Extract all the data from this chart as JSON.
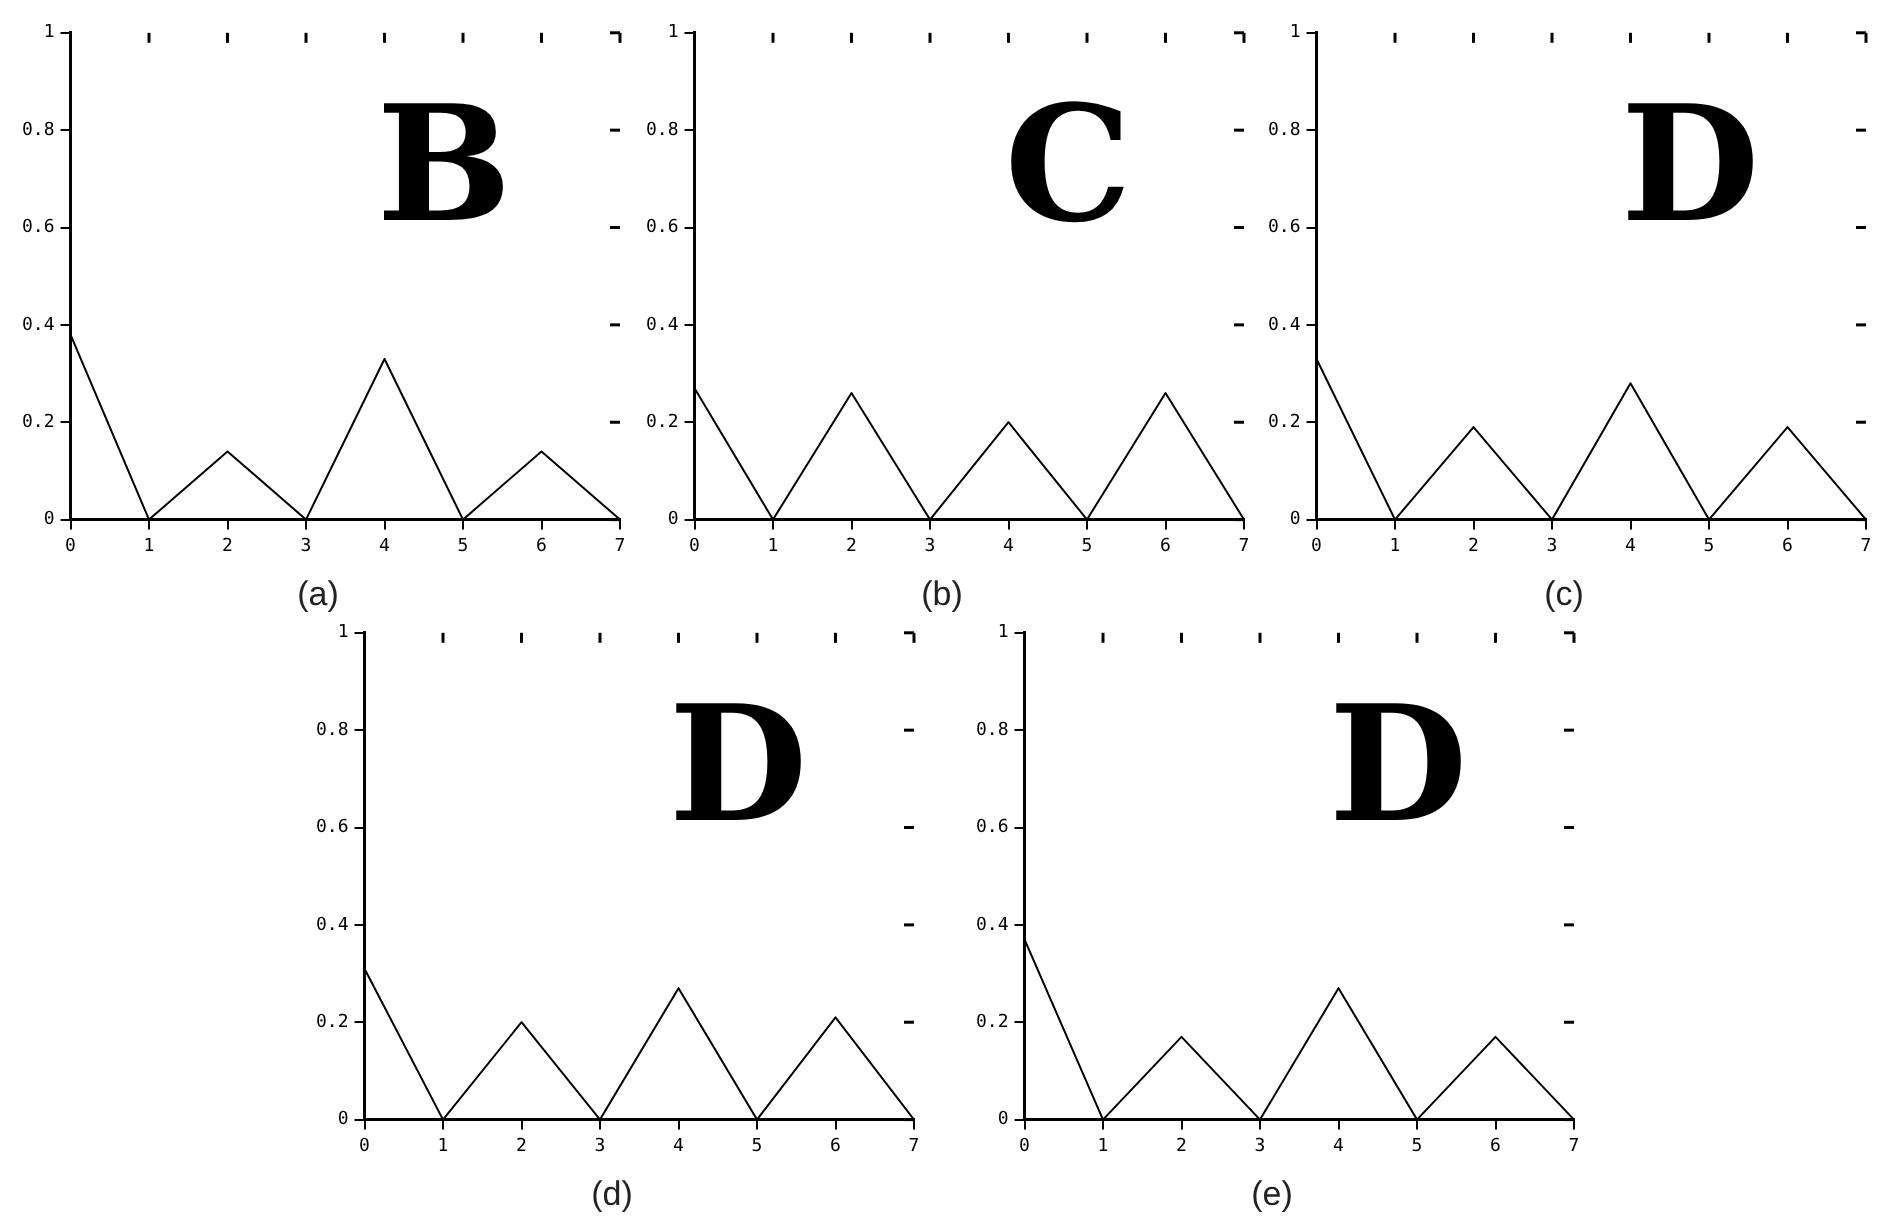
{
  "chart_data": [
    {
      "type": "line",
      "title": "(a)",
      "annotations": [
        "B"
      ],
      "x": [
        0,
        1,
        2,
        3,
        4,
        5,
        6,
        7
      ],
      "values": [
        0.38,
        0,
        0.14,
        0,
        0.33,
        0,
        0.14,
        0
      ],
      "color": "#000000",
      "xlim": [
        0,
        7
      ],
      "xticks": [
        0,
        1,
        2,
        3,
        4,
        5,
        6,
        7
      ],
      "ylim": [
        0,
        1
      ],
      "yticks": [
        0,
        0.2,
        0.4,
        0.6,
        0.8,
        1
      ],
      "grid": false,
      "legend": false,
      "marker": "none",
      "line_style": "solid"
    },
    {
      "type": "line",
      "title": "(b)",
      "annotations": [
        "C"
      ],
      "x": [
        0,
        1,
        2,
        3,
        4,
        5,
        6,
        7
      ],
      "values": [
        0.27,
        0,
        0.26,
        0,
        0.2,
        0,
        0.26,
        0
      ],
      "color": "#000000",
      "xlim": [
        0,
        7
      ],
      "xticks": [
        0,
        1,
        2,
        3,
        4,
        5,
        6,
        7
      ],
      "ylim": [
        0,
        1
      ],
      "yticks": [
        0,
        0.2,
        0.4,
        0.6,
        0.8,
        1
      ],
      "grid": false,
      "legend": false,
      "marker": "none",
      "line_style": "solid"
    },
    {
      "type": "line",
      "title": "(c)",
      "annotations": [
        "D"
      ],
      "x": [
        0,
        1,
        2,
        3,
        4,
        5,
        6,
        7
      ],
      "values": [
        0.33,
        0,
        0.19,
        0,
        0.28,
        0,
        0.19,
        0
      ],
      "color": "#000000",
      "xlim": [
        0,
        7
      ],
      "xticks": [
        0,
        1,
        2,
        3,
        4,
        5,
        6,
        7
      ],
      "ylim": [
        0,
        1
      ],
      "yticks": [
        0,
        0.2,
        0.4,
        0.6,
        0.8,
        1
      ],
      "grid": false,
      "legend": false,
      "marker": "none",
      "line_style": "solid"
    },
    {
      "type": "line",
      "title": "(d)",
      "annotations": [
        "D"
      ],
      "x": [
        0,
        1,
        2,
        3,
        4,
        5,
        6,
        7
      ],
      "values": [
        0.31,
        0,
        0.2,
        0,
        0.27,
        0,
        0.21,
        0
      ],
      "color": "#000000",
      "xlim": [
        0,
        7
      ],
      "xticks": [
        0,
        1,
        2,
        3,
        4,
        5,
        6,
        7
      ],
      "ylim": [
        0,
        1
      ],
      "yticks": [
        0,
        0.2,
        0.4,
        0.6,
        0.8,
        1
      ],
      "grid": false,
      "legend": false,
      "marker": "none",
      "line_style": "solid"
    },
    {
      "type": "line",
      "title": "(e)",
      "annotations": [
        "D"
      ],
      "x": [
        0,
        1,
        2,
        3,
        4,
        5,
        6,
        7
      ],
      "values": [
        0.37,
        0,
        0.17,
        0,
        0.27,
        0,
        0.17,
        0
      ],
      "color": "#000000",
      "xlim": [
        0,
        7
      ],
      "xticks": [
        0,
        1,
        2,
        3,
        4,
        5,
        6,
        7
      ],
      "ylim": [
        0,
        1
      ],
      "yticks": [
        0,
        0.2,
        0.4,
        0.6,
        0.8,
        1
      ],
      "grid": false,
      "legend": false,
      "marker": "none",
      "line_style": "solid"
    }
  ]
}
